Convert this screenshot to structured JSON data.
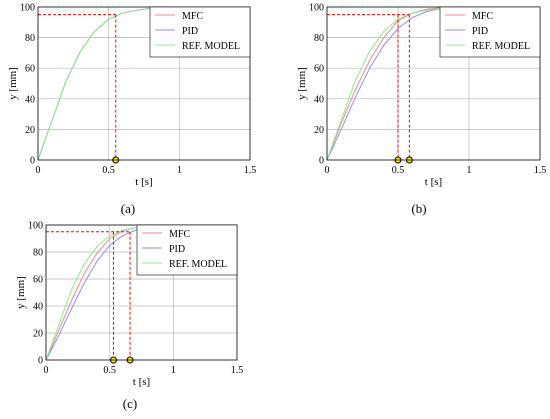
{
  "panels": [
    {
      "caption": "(a)",
      "chart_data": {
        "type": "line",
        "xlabel": "t [s]",
        "ylabel": "y [mm]",
        "xlim": [
          0,
          1.5
        ],
        "ylim": [
          0,
          100
        ],
        "xticks": [
          "0",
          "0.5",
          "1",
          "1.5"
        ],
        "yticks": [
          "0",
          "20",
          "40",
          "60",
          "80",
          "100"
        ],
        "grid": true,
        "legend_placement": "top-right",
        "reference_y": 95,
        "series": [
          {
            "name": "MFC",
            "color": "#ee8a8a",
            "x": [
              0,
              0.1,
              0.2,
              0.3,
              0.4,
              0.5,
              0.6,
              0.7,
              0.8,
              0.9,
              1.0,
              1.2,
              1.5
            ],
            "y": [
              0,
              26,
              52,
              71,
              84,
              92,
              96,
              98,
              99.2,
              99.7,
              100,
              100,
              100
            ]
          },
          {
            "name": "PID",
            "color": "#8f8fe8",
            "x": [
              0,
              0.1,
              0.2,
              0.3,
              0.4,
              0.5,
              0.6,
              0.7,
              0.8,
              0.9,
              1.0,
              1.2,
              1.5
            ],
            "y": [
              0,
              26,
              52,
              71,
              84,
              92,
              96,
              98,
              99.2,
              99.7,
              100,
              100,
              100
            ]
          },
          {
            "name": "REF. MODEL",
            "color": "#8fe88f",
            "x": [
              0,
              0.1,
              0.2,
              0.3,
              0.4,
              0.5,
              0.6,
              0.7,
              0.8,
              0.9,
              1.0,
              1.2,
              1.5
            ],
            "y": [
              0,
              26,
              52,
              71,
              84,
              92,
              96,
              98,
              99.2,
              99.7,
              100,
              100,
              100
            ]
          }
        ],
        "settling_markers": [
          {
            "t": 0.55,
            "y": 95
          }
        ]
      }
    },
    {
      "caption": "(b)",
      "chart_data": {
        "type": "line",
        "xlabel": "t [s]",
        "ylabel": "y [mm]",
        "xlim": [
          0,
          1.5
        ],
        "ylim": [
          0,
          100
        ],
        "xticks": [
          "0",
          "0.5",
          "1",
          "1.5"
        ],
        "yticks": [
          "0",
          "20",
          "40",
          "60",
          "80",
          "100"
        ],
        "grid": true,
        "legend_placement": "top-right",
        "reference_y": 95,
        "series": [
          {
            "name": "MFC",
            "color": "#ee8a8a",
            "x": [
              0,
              0.1,
              0.2,
              0.3,
              0.4,
              0.5,
              0.6,
              0.7,
              0.8,
              1.0,
              1.2,
              1.5
            ],
            "y": [
              0,
              24,
              46,
              65,
              80,
              91,
              96,
              98.5,
              99.5,
              100,
              100,
              100
            ]
          },
          {
            "name": "PID",
            "color": "#8f8fe8",
            "x": [
              0,
              0.1,
              0.2,
              0.3,
              0.4,
              0.5,
              0.6,
              0.7,
              0.8,
              1.0,
              1.2,
              1.5
            ],
            "y": [
              0,
              20,
              41,
              60,
              75,
              86,
              93,
              97,
              99,
              100,
              100,
              100
            ]
          },
          {
            "name": "REF. MODEL",
            "color": "#8fe88f",
            "x": [
              0,
              0.1,
              0.2,
              0.3,
              0.4,
              0.5,
              0.6,
              0.7,
              0.8,
              1.0,
              1.2,
              1.5
            ],
            "y": [
              0,
              26,
              52,
              71,
              84,
              92,
              96,
              98,
              99.2,
              100,
              100,
              100
            ]
          }
        ],
        "settling_markers": [
          {
            "t": 0.5,
            "y": 95
          },
          {
            "t": 0.58,
            "y": 95
          }
        ]
      }
    },
    {
      "caption": "(c)",
      "chart_data": {
        "type": "line",
        "xlabel": "t [s]",
        "ylabel": "y [mm]",
        "xlim": [
          0,
          1.5
        ],
        "ylim": [
          0,
          100
        ],
        "xticks": [
          "0",
          "0.5",
          "1",
          "1.5"
        ],
        "yticks": [
          "0",
          "20",
          "40",
          "60",
          "80",
          "100"
        ],
        "grid": true,
        "legend_placement": "top-right",
        "reference_y": 95,
        "series": [
          {
            "name": "MFC",
            "color": "#ee8a8a",
            "x": [
              0,
              0.1,
              0.2,
              0.3,
              0.4,
              0.5,
              0.6,
              0.7,
              0.8,
              1.0,
              1.2,
              1.5
            ],
            "y": [
              0,
              22,
              44,
              64,
              79,
              90,
              95.5,
              98,
              99.5,
              100,
              100,
              100
            ]
          },
          {
            "name": "PID",
            "color": "#8f8fe8",
            "x": [
              0,
              0.1,
              0.2,
              0.3,
              0.4,
              0.5,
              0.6,
              0.7,
              0.8,
              1.0,
              1.2,
              1.5
            ],
            "y": [
              0,
              18,
              38,
              57,
              73,
              85,
              92,
              96,
              98.5,
              100,
              100,
              100
            ]
          },
          {
            "name": "REF. MODEL",
            "color": "#8fe88f",
            "x": [
              0,
              0.1,
              0.2,
              0.3,
              0.4,
              0.5,
              0.6,
              0.7,
              0.8,
              1.0,
              1.2,
              1.5
            ],
            "y": [
              0,
              26,
              52,
              71,
              84,
              92,
              96,
              98,
              99.2,
              100,
              100,
              100
            ]
          }
        ],
        "settling_markers": [
          {
            "t": 0.53,
            "y": 95
          },
          {
            "t": 0.66,
            "y": 95
          }
        ]
      }
    }
  ]
}
